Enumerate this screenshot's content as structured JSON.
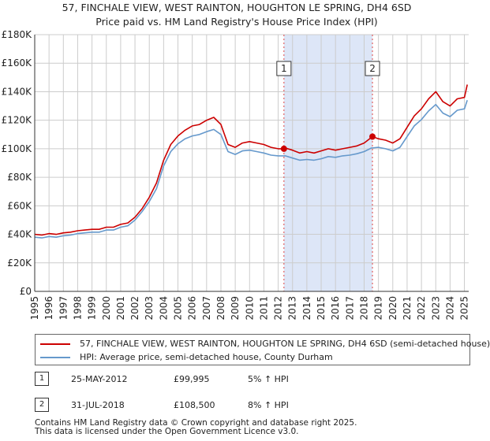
{
  "chart_data": {
    "type": "line",
    "title": "57, FINCHALE VIEW, WEST RAINTON, HOUGHTON LE SPRING, DH4 6SD",
    "subtitle": "Price paid vs. HM Land Registry's House Price Index (HPI)",
    "xlabel": "",
    "ylabel": "",
    "xlim": [
      1995,
      2025.3
    ],
    "ylim": [
      0,
      180000
    ],
    "x_ticks": [
      "1995",
      "1996",
      "1997",
      "1998",
      "1999",
      "2000",
      "2001",
      "2002",
      "2003",
      "2004",
      "2005",
      "2006",
      "2007",
      "2008",
      "2009",
      "2010",
      "2011",
      "2012",
      "2013",
      "2014",
      "2015",
      "2016",
      "2017",
      "2018",
      "2019",
      "2020",
      "2021",
      "2022",
      "2023",
      "2024",
      "2025"
    ],
    "y_ticks": [
      {
        "value": 0,
        "label": "£0"
      },
      {
        "value": 20000,
        "label": "£20K"
      },
      {
        "value": 40000,
        "label": "£40K"
      },
      {
        "value": 60000,
        "label": "£60K"
      },
      {
        "value": 80000,
        "label": "£80K"
      },
      {
        "value": 100000,
        "label": "£100K"
      },
      {
        "value": 120000,
        "label": "£120K"
      },
      {
        "value": 140000,
        "label": "£140K"
      },
      {
        "value": 160000,
        "label": "£160K"
      },
      {
        "value": 180000,
        "label": "£180K"
      }
    ],
    "grid": true,
    "shaded_region": {
      "from": 2012.4,
      "to": 2018.58,
      "color": "#dde6f7"
    },
    "series": [
      {
        "name": "57, FINCHALE VIEW, WEST RAINTON, HOUGHTON LE SPRING, DH4 6SD (semi-detached house)",
        "color": "#cc0000",
        "x": [
          1995.0,
          1995.5,
          1996.0,
          1996.5,
          1997.0,
          1997.5,
          1998.0,
          1998.5,
          1999.0,
          1999.5,
          2000.0,
          2000.5,
          2001.0,
          2001.5,
          2002.0,
          2002.5,
          2003.0,
          2003.5,
          2004.0,
          2004.5,
          2005.0,
          2005.5,
          2006.0,
          2006.5,
          2007.0,
          2007.5,
          2008.0,
          2008.5,
          2009.0,
          2009.5,
          2010.0,
          2010.5,
          2011.0,
          2011.5,
          2012.0,
          2012.4,
          2012.5,
          2013.0,
          2013.5,
          2014.0,
          2014.5,
          2015.0,
          2015.5,
          2016.0,
          2016.5,
          2017.0,
          2017.5,
          2018.0,
          2018.58,
          2019.0,
          2019.5,
          2020.0,
          2020.5,
          2021.0,
          2021.5,
          2022.0,
          2022.5,
          2023.0,
          2023.5,
          2024.0,
          2024.5,
          2025.0,
          2025.2
        ],
        "values": [
          40000,
          39500,
          40500,
          40000,
          41000,
          41500,
          42500,
          43000,
          43500,
          43500,
          45000,
          45000,
          47000,
          48000,
          52000,
          58000,
          66000,
          76000,
          92000,
          103000,
          109000,
          113000,
          116000,
          117000,
          120000,
          122000,
          117000,
          103000,
          101000,
          104000,
          105000,
          104000,
          103000,
          101000,
          100000,
          99995,
          100500,
          99000,
          97000,
          98000,
          97000,
          98500,
          100000,
          99000,
          100000,
          101000,
          102000,
          104000,
          108500,
          107000,
          106000,
          104000,
          107000,
          115000,
          123000,
          128000,
          135000,
          140000,
          133000,
          130000,
          135000,
          136000,
          145000
        ]
      },
      {
        "name": "HPI: Average price, semi-detached house, County Durham",
        "color": "#6699cc",
        "x": [
          1995.0,
          1995.5,
          1996.0,
          1996.5,
          1997.0,
          1997.5,
          1998.0,
          1998.5,
          1999.0,
          1999.5,
          2000.0,
          2000.5,
          2001.0,
          2001.5,
          2002.0,
          2002.5,
          2003.0,
          2003.5,
          2004.0,
          2004.5,
          2005.0,
          2005.5,
          2006.0,
          2006.5,
          2007.0,
          2007.5,
          2008.0,
          2008.5,
          2009.0,
          2009.5,
          2010.0,
          2010.5,
          2011.0,
          2011.5,
          2012.0,
          2012.5,
          2013.0,
          2013.5,
          2014.0,
          2014.5,
          2015.0,
          2015.5,
          2016.0,
          2016.5,
          2017.0,
          2017.5,
          2018.0,
          2018.5,
          2019.0,
          2019.5,
          2020.0,
          2020.5,
          2021.0,
          2021.5,
          2022.0,
          2022.5,
          2023.0,
          2023.5,
          2024.0,
          2024.5,
          2025.0,
          2025.2
        ],
        "values": [
          38000,
          37500,
          38500,
          38000,
          39000,
          39500,
          40500,
          41000,
          41500,
          41500,
          43000,
          43000,
          45000,
          46000,
          50000,
          56000,
          63000,
          72000,
          88000,
          98000,
          103500,
          107000,
          109000,
          110000,
          112000,
          113500,
          110000,
          98000,
          96000,
          98500,
          99000,
          98000,
          97000,
          95500,
          95000,
          95000,
          93500,
          92000,
          92500,
          92000,
          93000,
          94500,
          94000,
          95000,
          95500,
          96500,
          98000,
          100500,
          101000,
          100000,
          98500,
          101000,
          108500,
          116000,
          120500,
          126500,
          131000,
          125000,
          122500,
          127000,
          128000,
          134000
        ]
      }
    ],
    "sales": [
      {
        "id": "1",
        "x": 2012.4,
        "value": 99995
      },
      {
        "id": "2",
        "x": 2018.58,
        "value": 108500
      }
    ]
  },
  "legend": {
    "property_label": "57, FINCHALE VIEW, WEST RAINTON, HOUGHTON LE SPRING, DH4 6SD (semi-detached house)",
    "hpi_label": "HPI: Average price, semi-detached house, County Durham"
  },
  "sales_table": [
    {
      "id": "1",
      "date": "25-MAY-2012",
      "price": "£99,995",
      "hpi": "5% ↑ HPI"
    },
    {
      "id": "2",
      "date": "31-JUL-2018",
      "price": "£108,500",
      "hpi": "8% ↑ HPI"
    }
  ],
  "footer": {
    "line1": "Contains HM Land Registry data © Crown copyright and database right 2025.",
    "line2": "This data is licensed under the Open Government Licence v3.0."
  },
  "colors": {
    "property": "#cc0000",
    "hpi": "#6699cc",
    "shade": "#dde6f7",
    "grid": "#cccccc"
  }
}
